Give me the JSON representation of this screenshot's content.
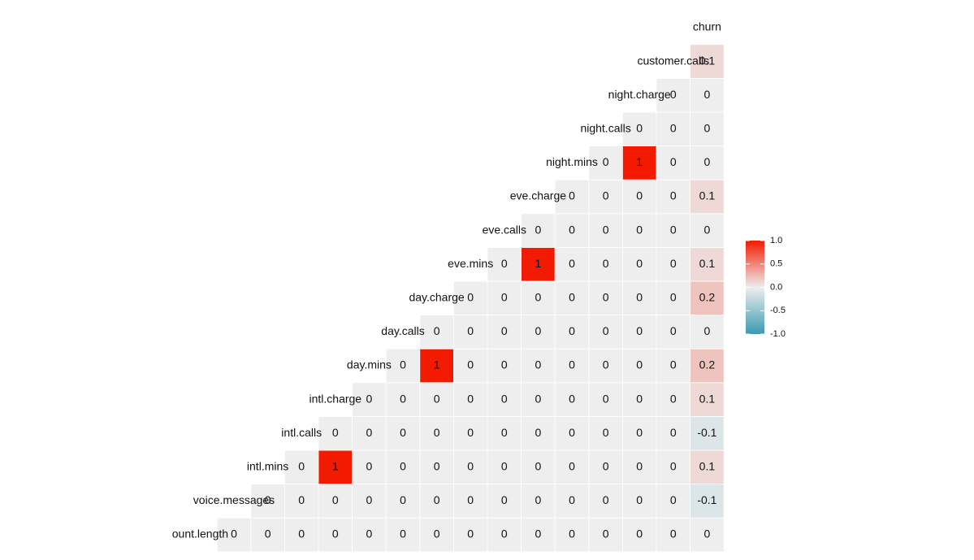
{
  "chart_data": {
    "type": "heatmap",
    "variables": [
      "ount.length",
      "voice.messages",
      "intl.mins",
      "intl.calls",
      "intl.charge",
      "day.mins",
      "day.calls",
      "day.charge",
      "eve.mins",
      "eve.calls",
      "eve.charge",
      "night.mins",
      "night.calls",
      "night.charge",
      "customer.calls",
      "churn"
    ],
    "rows": [
      [
        0,
        0,
        0,
        0,
        0,
        0,
        0,
        0,
        0,
        0,
        0,
        0,
        0,
        0,
        0
      ],
      [
        0,
        0,
        0,
        0,
        0,
        0,
        0,
        0,
        0,
        0,
        0,
        0,
        0,
        -0.1
      ],
      [
        0,
        1,
        0,
        0,
        0,
        0,
        0,
        0,
        0,
        0,
        0,
        0,
        0.1
      ],
      [
        0,
        0,
        0,
        0,
        0,
        0,
        0,
        0,
        0,
        0,
        0,
        -0.1
      ],
      [
        0,
        0,
        0,
        0,
        0,
        0,
        0,
        0,
        0,
        0,
        0.1
      ],
      [
        0,
        1,
        0,
        0,
        0,
        0,
        0,
        0,
        0,
        0.2
      ],
      [
        0,
        0,
        0,
        0,
        0,
        0,
        0,
        0,
        0
      ],
      [
        0,
        0,
        0,
        0,
        0,
        0,
        0,
        0.2
      ],
      [
        0,
        1,
        0,
        0,
        0,
        0,
        0.1
      ],
      [
        0,
        0,
        0,
        0,
        0,
        0
      ],
      [
        0,
        0,
        0,
        0,
        0.1
      ],
      [
        0,
        1,
        0,
        0
      ],
      [
        0,
        0,
        0
      ],
      [
        0,
        0
      ],
      [
        0.1
      ]
    ],
    "color_low": "#3B9AB2",
    "color_mid": "#EEEEEE",
    "color_high": "#F21A00",
    "clim": [
      -1,
      1
    ],
    "cticks": [
      {
        "value": -1,
        "label": "-1.0"
      },
      -0.5,
      {
        "value": 0,
        "label": "0.0"
      },
      0.5,
      {
        "value": 1,
        "label": "1.0"
      }
    ]
  }
}
